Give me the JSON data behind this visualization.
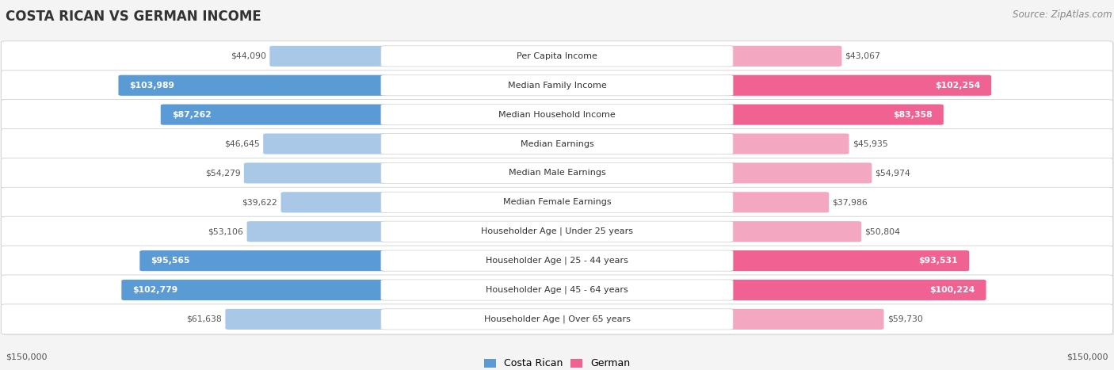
{
  "title": "COSTA RICAN VS GERMAN INCOME",
  "source": "Source: ZipAtlas.com",
  "categories": [
    "Per Capita Income",
    "Median Family Income",
    "Median Household Income",
    "Median Earnings",
    "Median Male Earnings",
    "Median Female Earnings",
    "Householder Age | Under 25 years",
    "Householder Age | 25 - 44 years",
    "Householder Age | 45 - 64 years",
    "Householder Age | Over 65 years"
  ],
  "costa_rican_values": [
    44090,
    103989,
    87262,
    46645,
    54279,
    39622,
    53106,
    95565,
    102779,
    61638
  ],
  "german_values": [
    43067,
    102254,
    83358,
    45935,
    54974,
    37986,
    50804,
    93531,
    100224,
    59730
  ],
  "max_value": 150000,
  "cr_color_dark": "#5b9bd5",
  "cr_color_light": "#a9c8e8",
  "de_color_dark": "#f06292",
  "de_color_light": "#f4a7c0",
  "row_bg": "#ffffff",
  "row_border": "#d0d0d0",
  "row_shadow": "#e8e8e8",
  "page_bg": "#f4f4f4",
  "label_box_color": "#ffffff",
  "label_box_border": "#d0d0d0",
  "value_color_outside": "#555555",
  "value_color_inside": "#ffffff",
  "dark_threshold": 75000,
  "title_fontsize": 12,
  "source_fontsize": 8.5,
  "cat_fontsize": 8,
  "value_fontsize": 7.8,
  "legend_fontsize": 9,
  "axis_label_fontsize": 8
}
